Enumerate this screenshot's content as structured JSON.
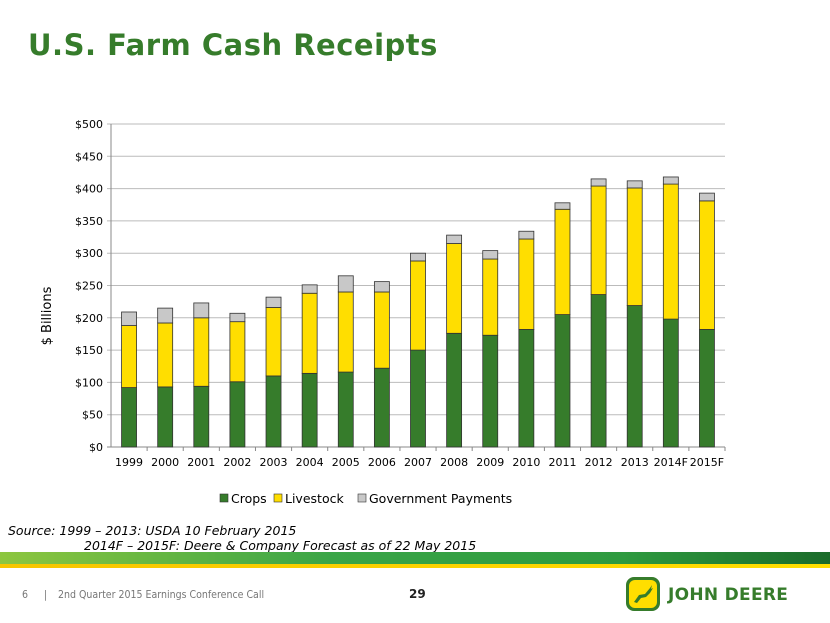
{
  "title": "U.S. Farm Cash Receipts",
  "source": {
    "line1": "Source: 1999 – 2013: USDA 10 February 2015",
    "line2": "2014F – 2015F: Deere & Company Forecast as of 22 May 2015"
  },
  "footer": {
    "slide_number": "6",
    "separator": "|",
    "event": "2nd Quarter 2015 Earnings Conference Call",
    "page": "29",
    "brand": "JOHN DEERE"
  },
  "colors": {
    "crops": "#367c2b",
    "livestock": "#ffde00",
    "gov": "#c8c8c8",
    "title": "#367c2b"
  },
  "chart_data": {
    "type": "bar",
    "stacked": true,
    "title": "",
    "xlabel": "",
    "ylabel": "$ Billions",
    "ylim": [
      0,
      500
    ],
    "yticks": [
      0,
      50,
      100,
      150,
      200,
      250,
      300,
      350,
      400,
      450,
      500
    ],
    "ytick_labels": [
      "$0",
      "$50",
      "$100",
      "$150",
      "$200",
      "$250",
      "$300",
      "$350",
      "$400",
      "$450",
      "$500"
    ],
    "grid": true,
    "legend_position": "bottom",
    "categories": [
      "1999",
      "2000",
      "2001",
      "2002",
      "2003",
      "2004",
      "2005",
      "2006",
      "2007",
      "2008",
      "2009",
      "2010",
      "2011",
      "2012",
      "2013",
      "2014F",
      "2015F"
    ],
    "series": [
      {
        "name": "Crops",
        "values": [
          92,
          93,
          94,
          101,
          110,
          114,
          116,
          122,
          150,
          176,
          173,
          182,
          205,
          236,
          219,
          198,
          182
        ]
      },
      {
        "name": "Livestock",
        "values": [
          96,
          99,
          106,
          93,
          106,
          124,
          124,
          118,
          138,
          139,
          118,
          140,
          163,
          168,
          182,
          209,
          199
        ]
      },
      {
        "name": "Government Payments",
        "values": [
          21,
          23,
          23,
          13,
          16,
          13,
          25,
          16,
          12,
          13,
          13,
          12,
          10,
          11,
          11,
          11,
          12
        ]
      }
    ]
  }
}
